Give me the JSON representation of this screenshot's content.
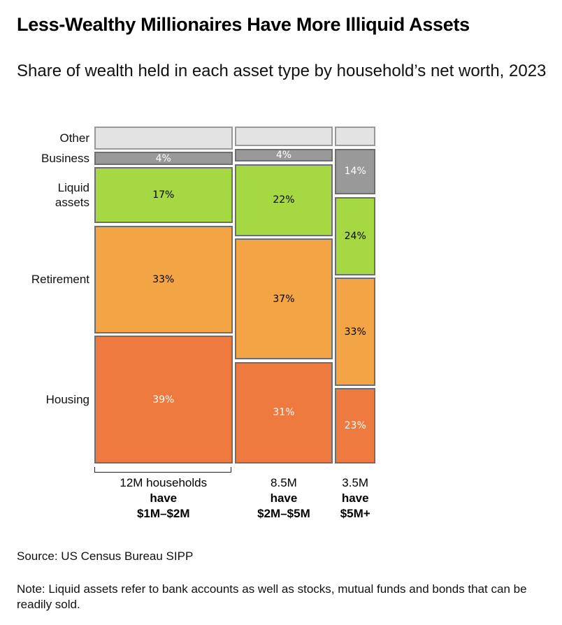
{
  "title": "Less-Wealthy Millionaires Have More Illiquid Assets",
  "subtitle": "Share of wealth held in each asset type by household’s net worth, 2023",
  "source": "Source: US Census Bureau SIPP",
  "note": "Note: Liquid assets refer to bank accounts as well as stocks, mutual funds and bonds that can be readily sold.",
  "chart_data": {
    "type": "mekko",
    "segments": [
      "Other",
      "Business",
      "Liquid assets",
      "Retirement",
      "Housing"
    ],
    "segment_labels": [
      "Other",
      "Business",
      "Liquid\nassets",
      "Retirement",
      "Housing"
    ],
    "colors": {
      "Other": "#e3e3e3",
      "Business": "#999999",
      "Liquid assets": "#a6d843",
      "Retirement": "#f3a545",
      "Housing": "#ee7a3f"
    },
    "label_colors": {
      "Other": "#000000",
      "Business": "#ffffff",
      "Liquid assets": "#000000",
      "Retirement": "#000000",
      "Housing": "#ffffff"
    },
    "columns": [
      {
        "households_millions": 12,
        "label_top": "12M households",
        "label_mid": "have",
        "label_bottom": "$1M–$2M",
        "values": {
          "Other": 7,
          "Business": 4,
          "Liquid assets": 17,
          "Retirement": 33,
          "Housing": 39
        },
        "labels": {
          "Other": "",
          "Business": "4%",
          "Liquid assets": "17%",
          "Retirement": "33%",
          "Housing": "39%"
        }
      },
      {
        "households_millions": 8.5,
        "label_top": "8.5M",
        "label_mid": "have",
        "label_bottom": "$2M–$5M",
        "values": {
          "Other": 6,
          "Business": 4,
          "Liquid assets": 22,
          "Retirement": 37,
          "Housing": 31
        },
        "labels": {
          "Other": "",
          "Business": "4%",
          "Liquid assets": "22%",
          "Retirement": "37%",
          "Housing": "31%"
        }
      },
      {
        "households_millions": 3.5,
        "label_top": "3.5M",
        "label_mid": "have",
        "label_bottom": "$5M+",
        "values": {
          "Other": 6,
          "Business": 14,
          "Liquid assets": 24,
          "Retirement": 33,
          "Housing": 23
        },
        "labels": {
          "Other": "",
          "Business": "14%",
          "Liquid assets": "24%",
          "Retirement": "33%",
          "Housing": "23%"
        }
      }
    ]
  }
}
